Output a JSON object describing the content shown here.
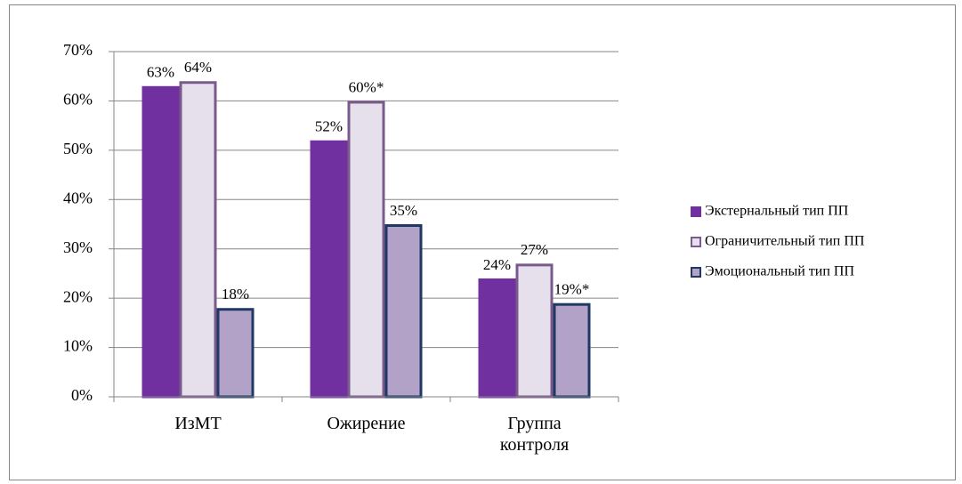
{
  "chart_data": {
    "type": "bar",
    "categories": [
      "ИзМТ",
      "Ожирение",
      "Группа контроля"
    ],
    "series": [
      {
        "name": "Экстернальный тип ПП",
        "color": "#7030a0",
        "border": "#7030a0",
        "values": [
          63,
          52,
          24
        ],
        "value_labels": [
          "63%",
          "52%",
          "24%"
        ]
      },
      {
        "name": "Ограничительный тип ПП",
        "color": "#e6e0ec",
        "border": "#7a5a8c",
        "values": [
          64,
          60,
          27
        ],
        "value_labels": [
          "64%",
          "60%*",
          "27%"
        ]
      },
      {
        "name": "Эмоциональный тип ПП",
        "color": "#b3a2c7",
        "border": "#1f3864",
        "values": [
          18,
          35,
          19
        ],
        "value_labels": [
          "18%",
          "35%",
          "19%*"
        ]
      }
    ],
    "ylim": [
      0,
      70
    ],
    "yticks": [
      {
        "value": 0,
        "label": "0%"
      },
      {
        "value": 10,
        "label": "10%"
      },
      {
        "value": 20,
        "label": "20%"
      },
      {
        "value": 30,
        "label": "30%"
      },
      {
        "value": 40,
        "label": "40%"
      },
      {
        "value": 50,
        "label": "50%"
      },
      {
        "value": 60,
        "label": "60%"
      },
      {
        "value": 70,
        "label": "70%"
      }
    ],
    "grid": true,
    "legend": "right"
  }
}
